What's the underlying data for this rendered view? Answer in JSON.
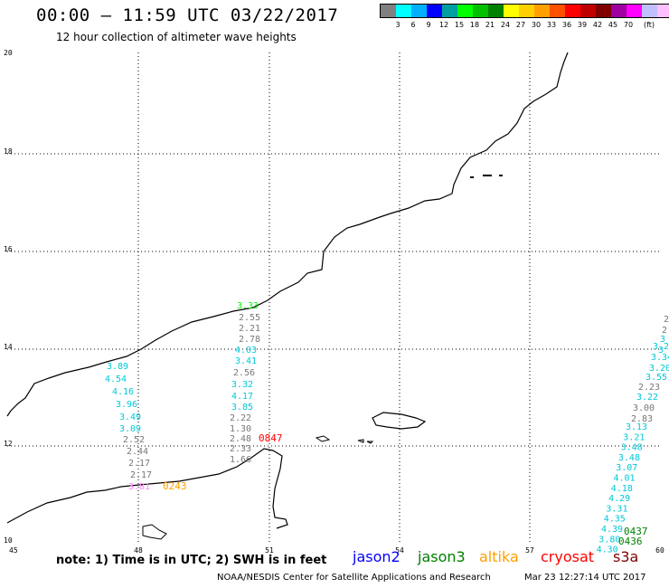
{
  "header": {
    "title": "00:00 – 11:59 UTC 03/22/2017",
    "subtitle": "12 hour collection of altimeter wave heights"
  },
  "legend": {
    "unit": "(ft)",
    "colors": [
      "#808080",
      "#00ffff",
      "#00b0ff",
      "#0000ff",
      "#00a0a0",
      "#00ff00",
      "#00c000",
      "#008000",
      "#ffff00",
      "#ffd000",
      "#ffa000",
      "#ff5000",
      "#ff0000",
      "#c00000",
      "#800000",
      "#a000a0",
      "#ff00ff",
      "#c0c0ff",
      "#ffc0ff",
      "#000000"
    ],
    "labels": [
      "3",
      "6",
      "9",
      "12",
      "15",
      "18",
      "21",
      "24",
      "27",
      "30",
      "33",
      "36",
      "39",
      "42",
      "45",
      "70"
    ]
  },
  "map": {
    "lon_ticks": [
      "45",
      "48",
      "51",
      "54",
      "57",
      "60"
    ],
    "lat_ticks": [
      "20",
      "18",
      "16",
      "14",
      "12",
      "10"
    ],
    "track_cyan_west": [
      "3.89",
      "4.54",
      "4.16",
      "3.96",
      "3.49",
      "3.09"
    ],
    "track_gray_west": [
      "2.52",
      "2.44",
      "2.17",
      "2.17"
    ],
    "track_pink_west": "3.81",
    "time_west": "0243",
    "track_central_top": "3.33",
    "track_central_gray": [
      "2.55",
      "2.21",
      "2.78"
    ],
    "track_central_cyan": [
      "4.03",
      "3.41"
    ],
    "track_central_gray2": "2.56",
    "track_central_cyan2": [
      "3.32",
      "4.17",
      "3.85"
    ],
    "track_central_gray3": [
      "2.22",
      "1.30",
      "2.48",
      "2.33",
      "1.66"
    ],
    "time_central": "0847",
    "track_east_gray": [
      "2.23",
      "3.00",
      "2.83"
    ],
    "track_east_cyan_top": [
      "3.22",
      "3.13",
      "3.21",
      "3.48",
      "3.48",
      "3.07",
      "4.01",
      "4.18",
      "4.29",
      "3.31",
      "4.35",
      "4.39",
      "3.80",
      "4.30"
    ],
    "track_east_cyan_upper": [
      "3.55",
      "3.20",
      "3.34",
      "3.29"
    ],
    "track_east_frag": [
      "2",
      "2",
      "3",
      "3"
    ],
    "time_east_1": "0437",
    "time_east_2": "0436"
  },
  "footer": {
    "note": "note: 1) Time is in UTC; 2) SWH is in feet",
    "satellites": [
      {
        "name": "jason2",
        "color": "#0000ff"
      },
      {
        "name": "jason3",
        "color": "#008000"
      },
      {
        "name": "altika",
        "color": "#ffa000"
      },
      {
        "name": "cryosat",
        "color": "#ff0000"
      },
      {
        "name": "s3a",
        "color": "#800000"
      }
    ],
    "credit": "NOAA/NESDIS Center for Satellite Applications and Research",
    "timestamp": "Mar 23 12:27:14 UTC 2017"
  }
}
